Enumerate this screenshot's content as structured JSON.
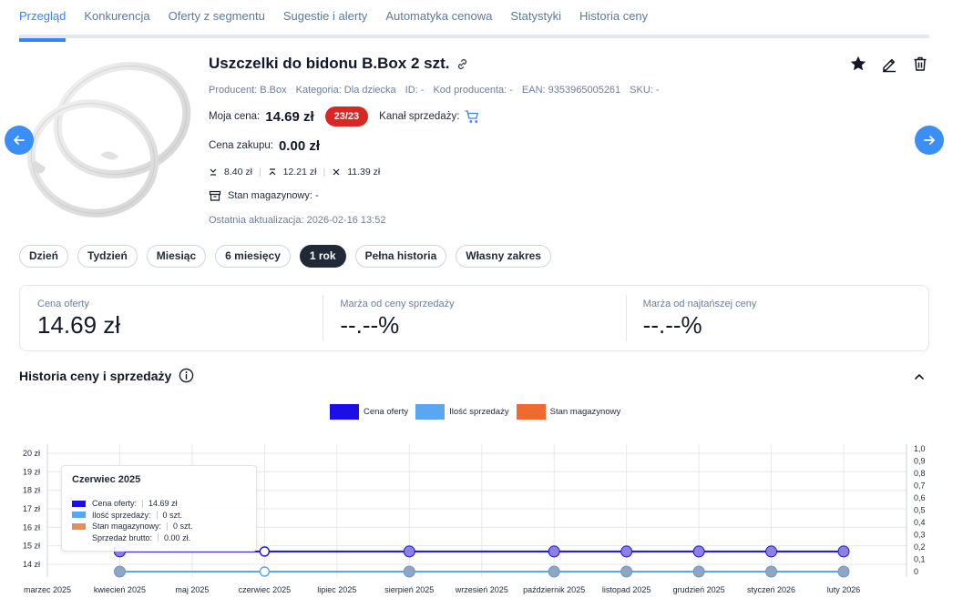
{
  "tabs": [
    {
      "label": "Przegląd",
      "active": true
    },
    {
      "label": "Konkurencja"
    },
    {
      "label": "Oferty z segmentu"
    },
    {
      "label": "Sugestie i alerty"
    },
    {
      "label": "Automatyka cenowa"
    },
    {
      "label": "Statystyki"
    },
    {
      "label": "Historia ceny"
    }
  ],
  "product": {
    "title": "Uszczelki do bidonu B.Box 2 szt.",
    "producer": "Producent: B.Box",
    "category": "Kategoria: Dla dziecka",
    "id": "ID: -",
    "producer_code": "Kod producenta: -",
    "ean": "EAN: 9353965005261",
    "sku": "SKU: -",
    "my_price_label": "Moja cena:",
    "my_price": "14.69 zł",
    "rank_badge": "23/23",
    "channel_label": "Kanał sprzedaży:",
    "purchase_label": "Cena zakupu:",
    "purchase_price": "0.00 zł",
    "min_price": "8.40 zł",
    "max_price": "12.21 zł",
    "avg_price": "11.39 zł",
    "stock": "Stan magazynowy: -",
    "updated": "Ostatnia aktualizacja: 2026-02-16 13:52"
  },
  "periods": [
    {
      "label": "Dzień"
    },
    {
      "label": "Tydzień"
    },
    {
      "label": "Miesiąc"
    },
    {
      "label": "6 miesięcy"
    },
    {
      "label": "1 rok",
      "active": true
    },
    {
      "label": "Pełna historia"
    },
    {
      "label": "Własny zakres"
    }
  ],
  "kpis": [
    {
      "label": "Cena oferty",
      "value": "14.69 zł"
    },
    {
      "label": "Marża od ceny sprzedaży",
      "value": "--.--%"
    },
    {
      "label": "Marża od najtańszej ceny",
      "value": "--.--%"
    }
  ],
  "section_title": "Historia ceny i sprzedaży",
  "colors": {
    "accent": "#3b82f6",
    "price": "#1a0fe8",
    "sales": "#5aa6f2",
    "stock": "#ee6a2f",
    "badge": "#dc2626"
  },
  "chart_data": {
    "type": "line",
    "legend": [
      {
        "name": "Cena oferty",
        "color": "#1a0fe8"
      },
      {
        "name": "Ilość sprzedaży",
        "color": "#5aa6f2"
      },
      {
        "name": "Stan magazynowy",
        "color": "#ee6a2f"
      }
    ],
    "legend_position": "top-center",
    "x_ticks": [
      "marzec 2025",
      "kwiecień 2025",
      "maj 2025",
      "czerwiec 2025",
      "lipiec 2025",
      "sierpień 2025",
      "wrzesień 2025",
      "październik 2025",
      "listopad 2025",
      "grudzień 2025",
      "styczeń 2026",
      "luty 2026"
    ],
    "y_left": {
      "ticks": [
        "14 zł",
        "15 zł",
        "16 zł",
        "17 zł",
        "18 zł",
        "19 zł",
        "20 zł"
      ],
      "values": [
        14,
        15,
        16,
        17,
        18,
        19,
        20
      ],
      "range": [
        13.8,
        20.2
      ]
    },
    "y_right": {
      "ticks": [
        "0",
        "0,1",
        "0,2",
        "0,3",
        "0,4",
        "0,5",
        "0,6",
        "0,7",
        "0,8",
        "0,9",
        "1,0"
      ],
      "values": [
        0,
        0.1,
        0.2,
        0.3,
        0.4,
        0.5,
        0.6,
        0.7,
        0.8,
        0.9,
        1.0
      ],
      "range": [
        0,
        1
      ]
    },
    "grid": true,
    "series": [
      {
        "name": "Cena oferty",
        "axis": "left",
        "x": [
          "kwiecień 2025",
          "czerwiec 2025",
          "sierpień 2025",
          "październik 2025",
          "listopad 2025",
          "grudzień 2025",
          "styczeń 2026",
          "luty 2026"
        ],
        "values": [
          14.69,
          14.69,
          14.69,
          14.69,
          14.69,
          14.69,
          14.69,
          14.69
        ]
      },
      {
        "name": "Ilość sprzedaży",
        "axis": "right",
        "x": [
          "kwiecień 2025",
          "czerwiec 2025",
          "sierpień 2025",
          "październik 2025",
          "listopad 2025",
          "grudzień 2025",
          "styczeń 2026",
          "luty 2026"
        ],
        "values": [
          0,
          0,
          0,
          0,
          0,
          0,
          0,
          0
        ]
      }
    ],
    "hovered_point": "czerwiec 2025",
    "tooltip": {
      "title": "Czerwiec 2025",
      "rows": [
        {
          "label": "Cena oferty:",
          "value": "14.69 zł",
          "color": "#1a0fe8"
        },
        {
          "label": "Ilość sprzedaży:",
          "value": "0 szt.",
          "color": "#5aa6f2"
        },
        {
          "label": "Stan magazynowy:",
          "value": "0 szt.",
          "color": "#ee8a5a"
        },
        {
          "label": "Sprzedaż brutto:",
          "value": "0.00 zł.",
          "color": ""
        }
      ]
    }
  }
}
